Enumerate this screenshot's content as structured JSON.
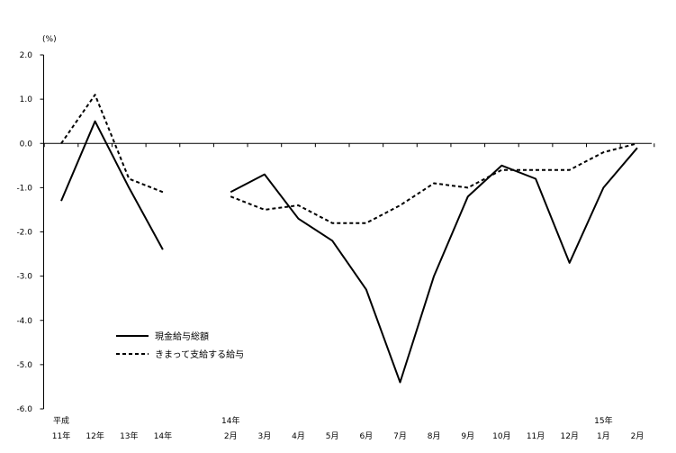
{
  "chart_data": {
    "type": "line",
    "unit": "(%)",
    "ylim": [
      -6.0,
      2.0
    ],
    "yticks": [
      2.0,
      1.0,
      0.0,
      -1.0,
      -2.0,
      -3.0,
      -4.0,
      -5.0,
      -6.0
    ],
    "ytick_labels": [
      "2.0",
      "1.0",
      "0.0",
      "-1.0",
      "-2.0",
      "-3.0",
      "-4.0",
      "-5.0",
      "-6.0"
    ],
    "grid": false,
    "zero_line": true,
    "legend_position": "bottom-left",
    "categories": [
      {
        "line1": "平成",
        "line2": "11年"
      },
      {
        "line1": "",
        "line2": "12年"
      },
      {
        "line1": "",
        "line2": "13年"
      },
      {
        "line1": "",
        "line2": "14年"
      },
      {
        "line1": "",
        "line2": ""
      },
      {
        "line1": "14年",
        "line2": "2月"
      },
      {
        "line1": "",
        "line2": "3月"
      },
      {
        "line1": "",
        "line2": "4月"
      },
      {
        "line1": "",
        "line2": "5月"
      },
      {
        "line1": "",
        "line2": "6月"
      },
      {
        "line1": "",
        "line2": "7月"
      },
      {
        "line1": "",
        "line2": "8月"
      },
      {
        "line1": "",
        "line2": "9月"
      },
      {
        "line1": "",
        "line2": "10月"
      },
      {
        "line1": "",
        "line2": "11月"
      },
      {
        "line1": "",
        "line2": "12月"
      },
      {
        "line1": "15年",
        "line2": "1月"
      },
      {
        "line1": "",
        "line2": "2月"
      }
    ],
    "series": [
      {
        "name": "現金給与総額",
        "style": "solid",
        "color": "#000000",
        "values": [
          -1.3,
          0.5,
          -1.0,
          -2.4,
          null,
          -1.1,
          -0.7,
          -1.7,
          -2.2,
          -3.3,
          -5.4,
          -3.0,
          -1.2,
          -0.5,
          -0.8,
          -2.7,
          -1.0,
          -0.1
        ]
      },
      {
        "name": "きまって支給する給与",
        "style": "dotted",
        "color": "#000000",
        "values": [
          0.0,
          1.1,
          -0.8,
          -1.1,
          null,
          -1.2,
          -1.5,
          -1.4,
          -1.8,
          -1.8,
          -1.4,
          -0.9,
          -1.0,
          -0.6,
          -0.6,
          -0.6,
          -0.2,
          0.0
        ]
      }
    ]
  }
}
